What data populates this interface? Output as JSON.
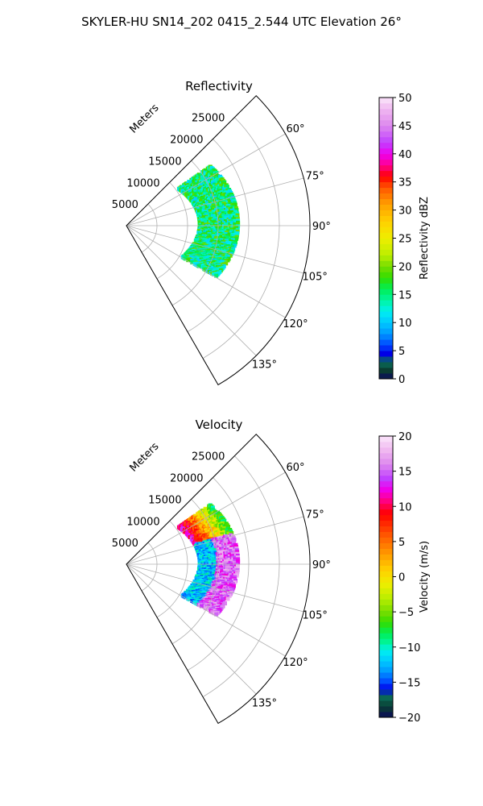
{
  "figure_title": "SKYLER-HU  SN14_202  0415_2.544 UTC Elevation 26°",
  "range_label": "Meters",
  "chart_data": [
    {
      "type": "heatmap",
      "title": "Reflectivity",
      "projection": "polar-sector",
      "azimuth_range_deg": [
        45,
        150
      ],
      "range_limits_m": [
        0,
        30000
      ],
      "range_ticks": [
        5000,
        10000,
        15000,
        20000,
        25000
      ],
      "range_tick_labels": [
        "5000",
        "10000",
        "15000",
        "20000",
        "25000"
      ],
      "azimuth_ticks": [
        60,
        75,
        90,
        105,
        120,
        135
      ],
      "azimuth_tick_labels": [
        "60°",
        "75°",
        "90°",
        "105°",
        "120°",
        "135°"
      ],
      "grid": true,
      "colorbar": {
        "label": "Reflectivity dBZ",
        "range": [
          0,
          50
        ],
        "ticks": [
          0,
          5,
          10,
          15,
          20,
          25,
          30,
          35,
          40,
          45,
          50
        ],
        "tick_labels": [
          "0",
          "5",
          "10",
          "15",
          "20",
          "25",
          "30",
          "35",
          "40",
          "45",
          "50"
        ],
        "stops": [
          {
            "v": 0,
            "c": "#0a0a5a"
          },
          {
            "v": 1.5,
            "c": "#0a3c32"
          },
          {
            "v": 3,
            "c": "#0a6e5a"
          },
          {
            "v": 4.5,
            "c": "#0000e6"
          },
          {
            "v": 6,
            "c": "#0046ff"
          },
          {
            "v": 8,
            "c": "#0096ff"
          },
          {
            "v": 10,
            "c": "#00c8ff"
          },
          {
            "v": 12,
            "c": "#00f0f0"
          },
          {
            "v": 14,
            "c": "#00f5a0"
          },
          {
            "v": 16,
            "c": "#00ee55"
          },
          {
            "v": 18,
            "c": "#33dd00"
          },
          {
            "v": 20,
            "c": "#77dd00"
          },
          {
            "v": 22,
            "c": "#bbee00"
          },
          {
            "v": 25,
            "c": "#eeee00"
          },
          {
            "v": 28,
            "c": "#ffd000"
          },
          {
            "v": 31,
            "c": "#ffa000"
          },
          {
            "v": 34,
            "c": "#ff5500"
          },
          {
            "v": 36,
            "c": "#ff0000"
          },
          {
            "v": 38,
            "c": "#ff0090"
          },
          {
            "v": 40,
            "c": "#ee00ee"
          },
          {
            "v": 42,
            "c": "#c040ff"
          },
          {
            "v": 45,
            "c": "#dd88ee"
          },
          {
            "v": 48,
            "c": "#f0b8f0"
          },
          {
            "v": 50,
            "c": "#fbe6fb"
          }
        ]
      },
      "echo": {
        "azimuth_span_deg": [
          55,
          120
        ],
        "range_span_m": [
          10500,
          17000
        ],
        "typical_value": 15,
        "value_spread": 5
      }
    },
    {
      "type": "heatmap",
      "title": "Velocity",
      "projection": "polar-sector",
      "azimuth_range_deg": [
        45,
        150
      ],
      "range_limits_m": [
        0,
        30000
      ],
      "range_ticks": [
        5000,
        10000,
        15000,
        20000,
        25000
      ],
      "range_tick_labels": [
        "5000",
        "10000",
        "15000",
        "20000",
        "25000"
      ],
      "azimuth_ticks": [
        60,
        75,
        90,
        105,
        120,
        135
      ],
      "azimuth_tick_labels": [
        "60°",
        "75°",
        "90°",
        "105°",
        "120°",
        "135°"
      ],
      "grid": true,
      "colorbar": {
        "label": "Velocity (m/s)",
        "range": [
          -20,
          20
        ],
        "ticks": [
          -20,
          -15,
          -10,
          -5,
          0,
          5,
          10,
          15,
          20
        ],
        "tick_labels": [
          "−20",
          "−15",
          "−10",
          "−5",
          "0",
          "5",
          "10",
          "15",
          "20"
        ],
        "stops": [
          {
            "v": -20,
            "c": "#0a0a5a"
          },
          {
            "v": -18.5,
            "c": "#0a3c32"
          },
          {
            "v": -17,
            "c": "#0a6e5a"
          },
          {
            "v": -16,
            "c": "#0000e6"
          },
          {
            "v": -15,
            "c": "#0046ff"
          },
          {
            "v": -13.5,
            "c": "#0096ff"
          },
          {
            "v": -12,
            "c": "#00c8ff"
          },
          {
            "v": -10.5,
            "c": "#00f0f0"
          },
          {
            "v": -9.5,
            "c": "#00f5a0"
          },
          {
            "v": -8,
            "c": "#00ee55"
          },
          {
            "v": -6.5,
            "c": "#33dd00"
          },
          {
            "v": -5,
            "c": "#77dd00"
          },
          {
            "v": -3,
            "c": "#bbee00"
          },
          {
            "v": -1,
            "c": "#eeee00"
          },
          {
            "v": 1,
            "c": "#ffd000"
          },
          {
            "v": 3,
            "c": "#ffa000"
          },
          {
            "v": 6,
            "c": "#ff5500"
          },
          {
            "v": 9,
            "c": "#ff0000"
          },
          {
            "v": 11,
            "c": "#ff0090"
          },
          {
            "v": 12.5,
            "c": "#ee00ee"
          },
          {
            "v": 14,
            "c": "#c040ff"
          },
          {
            "v": 16,
            "c": "#dd88ee"
          },
          {
            "v": 18,
            "c": "#f0b8f0"
          },
          {
            "v": 20,
            "c": "#fbe6fb"
          }
        ]
      },
      "echo": {
        "azimuth_span_deg": [
          55,
          120
        ],
        "range_span_m": [
          10500,
          17000
        ],
        "typical_value": 12,
        "value_spread": 6
      }
    }
  ]
}
